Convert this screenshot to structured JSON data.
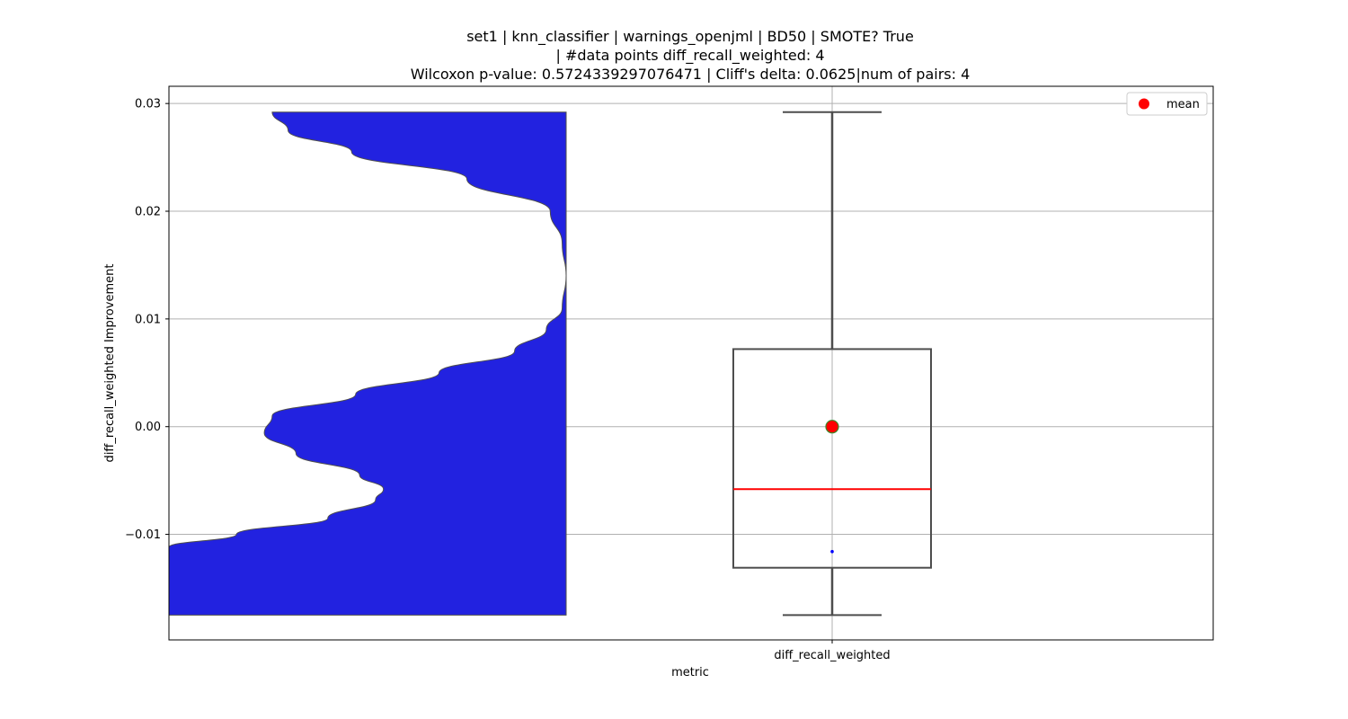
{
  "chart_data": {
    "type": "violin+box",
    "title_lines": [
      "set1 | knn_classifier | warnings_openjml | BD50 | SMOTE? True",
      "| #data points diff_recall_weighted: 4",
      "Wilcoxon p-value: 0.5724339297076471 | Cliff's delta: 0.0625|num of pairs: 4"
    ],
    "xlabel": "metric",
    "ylabel": "diff_recall_weighted Improvement",
    "categories": [
      "diff_recall_weighted"
    ],
    "ylim": [
      -0.0198,
      0.0316
    ],
    "yticks": [
      -0.01,
      0.0,
      0.01,
      0.02,
      0.03
    ],
    "ytick_labels": [
      "−0.01",
      "0.00",
      "0.01",
      "0.02",
      "0.03"
    ],
    "grid": true,
    "legend": {
      "position": "top-right",
      "entries": [
        {
          "label": "mean",
          "color": "#ff0000"
        }
      ]
    },
    "colors": {
      "violin_fill": "#2222e0",
      "box_edge": "#4d4d4d",
      "median": "#ff0000",
      "mean_fill": "#ff0000",
      "mean_edge": "#3a8a2a",
      "outlier": "#0000ff",
      "grid": "#b0b0b0"
    },
    "box": {
      "whisker_low": -0.0175,
      "q1": -0.0131,
      "median": -0.0058,
      "q3": 0.0072,
      "whisker_high": 0.0292,
      "mean": 0.0,
      "outliers": [
        -0.0116
      ]
    },
    "violin": {
      "side": "left",
      "y_min": -0.0175,
      "y_max": 0.0292,
      "density_profile": [
        [
          -0.0175,
          1.0
        ],
        [
          -0.0112,
          1.0
        ],
        [
          -0.01,
          0.83
        ],
        [
          -0.0085,
          0.6
        ],
        [
          -0.0068,
          0.48
        ],
        [
          -0.0058,
          0.46
        ],
        [
          -0.0045,
          0.52
        ],
        [
          -0.0025,
          0.68
        ],
        [
          -0.0006,
          0.76
        ],
        [
          0.001,
          0.74
        ],
        [
          0.003,
          0.53
        ],
        [
          0.005,
          0.32
        ],
        [
          0.007,
          0.13
        ],
        [
          0.009,
          0.05
        ],
        [
          0.011,
          0.01
        ],
        [
          0.014,
          0.0
        ],
        [
          0.017,
          0.01
        ],
        [
          0.02,
          0.04
        ],
        [
          0.023,
          0.25
        ],
        [
          0.0255,
          0.54
        ],
        [
          0.0275,
          0.7
        ],
        [
          0.0292,
          0.74
        ]
      ]
    }
  }
}
